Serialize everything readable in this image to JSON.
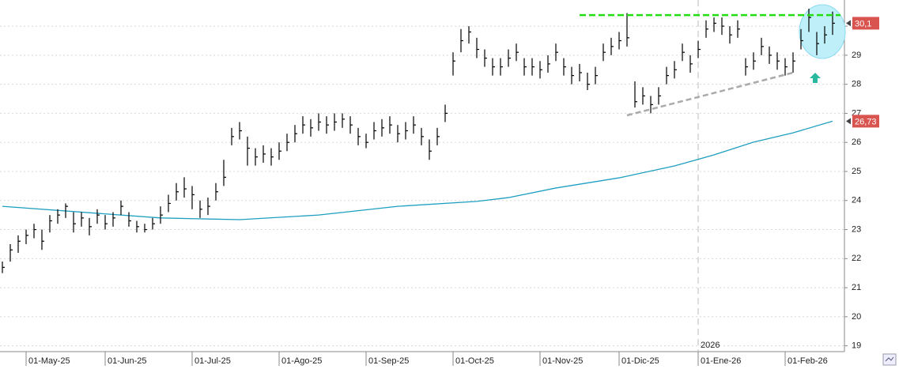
{
  "chart_data": {
    "type": "ohlc",
    "color": "#000000",
    "bars": [
      [
        21.9,
        21.5,
        21.7
      ],
      [
        22.5,
        21.9,
        22.3
      ],
      [
        22.8,
        22.2,
        22.6
      ],
      [
        23.0,
        22.5,
        22.8
      ],
      [
        23.2,
        22.7,
        23.0
      ],
      [
        23.0,
        22.3,
        22.6
      ],
      [
        23.5,
        22.9,
        23.3
      ],
      [
        23.7,
        23.2,
        23.5
      ],
      [
        23.9,
        23.4,
        23.8
      ],
      [
        23.6,
        22.9,
        23.2
      ],
      [
        23.6,
        23.1,
        23.4
      ],
      [
        23.4,
        22.8,
        23.1
      ],
      [
        23.7,
        23.2,
        23.5
      ],
      [
        23.5,
        23.0,
        23.2
      ],
      [
        23.6,
        23.1,
        23.4
      ],
      [
        24.0,
        23.5,
        23.8
      ],
      [
        23.6,
        23.1,
        23.3
      ],
      [
        23.3,
        22.9,
        23.1
      ],
      [
        23.2,
        22.9,
        23.0
      ],
      [
        23.4,
        23.0,
        23.2
      ],
      [
        23.8,
        23.2,
        23.5
      ],
      [
        24.2,
        23.6,
        23.9
      ],
      [
        24.6,
        24.0,
        24.3
      ],
      [
        24.8,
        24.1,
        24.4
      ],
      [
        24.5,
        23.7,
        24.2
      ],
      [
        24.0,
        23.4,
        23.7
      ],
      [
        24.1,
        23.5,
        23.8
      ],
      [
        24.6,
        24.0,
        24.3
      ],
      [
        25.4,
        24.5,
        24.8
      ],
      [
        26.5,
        25.9,
        26.2
      ],
      [
        26.7,
        26.1,
        26.4
      ],
      [
        26.2,
        25.2,
        25.8
      ],
      [
        25.8,
        25.2,
        25.5
      ],
      [
        25.9,
        25.3,
        25.6
      ],
      [
        25.8,
        25.2,
        25.5
      ],
      [
        26.0,
        25.4,
        25.7
      ],
      [
        26.3,
        25.7,
        26.0
      ],
      [
        26.6,
        26.0,
        26.3
      ],
      [
        26.9,
        26.3,
        26.6
      ],
      [
        26.8,
        26.2,
        26.5
      ],
      [
        27.0,
        26.4,
        26.7
      ],
      [
        26.9,
        26.3,
        26.6
      ],
      [
        27.0,
        26.4,
        26.7
      ],
      [
        27.0,
        26.5,
        26.8
      ],
      [
        26.9,
        26.3,
        26.6
      ],
      [
        26.5,
        25.9,
        26.2
      ],
      [
        26.3,
        25.8,
        26.0
      ],
      [
        26.7,
        26.1,
        26.4
      ],
      [
        26.8,
        26.2,
        26.5
      ],
      [
        26.9,
        26.3,
        26.6
      ],
      [
        26.6,
        26.0,
        26.3
      ],
      [
        26.7,
        26.1,
        26.4
      ],
      [
        26.9,
        26.3,
        26.6
      ],
      [
        26.5,
        25.9,
        26.2
      ],
      [
        26.1,
        25.4,
        25.7
      ],
      [
        26.5,
        25.9,
        26.2
      ],
      [
        27.3,
        26.7,
        27.0
      ],
      [
        29.1,
        28.3,
        28.8
      ],
      [
        29.9,
        29.1,
        29.5
      ],
      [
        30.0,
        29.4,
        29.8
      ],
      [
        29.6,
        28.9,
        29.2
      ],
      [
        29.2,
        28.6,
        28.9
      ],
      [
        28.9,
        28.3,
        28.6
      ],
      [
        28.9,
        28.3,
        28.6
      ],
      [
        29.2,
        28.6,
        28.9
      ],
      [
        29.4,
        28.8,
        29.1
      ],
      [
        28.9,
        28.3,
        28.6
      ],
      [
        28.9,
        28.3,
        28.6
      ],
      [
        28.8,
        28.2,
        28.5
      ],
      [
        29.0,
        28.4,
        28.7
      ],
      [
        29.4,
        28.8,
        29.1
      ],
      [
        28.9,
        28.3,
        28.6
      ],
      [
        28.6,
        28.0,
        28.3
      ],
      [
        28.7,
        28.1,
        28.4
      ],
      [
        28.4,
        27.8,
        28.0
      ],
      [
        28.6,
        28.0,
        28.3
      ],
      [
        29.4,
        28.8,
        29.1
      ],
      [
        29.6,
        29.0,
        29.3
      ],
      [
        29.8,
        29.2,
        29.5
      ],
      [
        30.45,
        29.3,
        29.6
      ],
      [
        28.1,
        27.2,
        27.4
      ],
      [
        27.9,
        27.3,
        27.6
      ],
      [
        27.6,
        27.0,
        27.3
      ],
      [
        27.9,
        27.3,
        27.6
      ],
      [
        28.6,
        28.0,
        28.3
      ],
      [
        28.8,
        28.2,
        28.5
      ],
      [
        29.4,
        28.8,
        29.1
      ],
      [
        29.0,
        28.4,
        28.7
      ],
      [
        29.5,
        28.9,
        29.2
      ],
      [
        30.2,
        29.6,
        29.9
      ],
      [
        30.3,
        29.8,
        30.1
      ],
      [
        30.3,
        29.7,
        30.0
      ],
      [
        30.0,
        29.4,
        29.7
      ],
      [
        30.2,
        29.6,
        29.9
      ],
      [
        28.9,
        28.3,
        28.6
      ],
      [
        29.1,
        28.5,
        28.8
      ],
      [
        29.6,
        29.0,
        29.3
      ],
      [
        29.3,
        28.7,
        29.0
      ],
      [
        29.1,
        28.5,
        28.8
      ],
      [
        28.9,
        28.3,
        28.6
      ],
      [
        29.1,
        28.4,
        28.8
      ],
      [
        29.9,
        29.2,
        29.5
      ],
      [
        30.6,
        29.8,
        30.3
      ],
      [
        29.8,
        29.0,
        29.4
      ],
      [
        30.0,
        29.4,
        29.7
      ],
      [
        30.5,
        29.7,
        30.1
      ]
    ],
    "xlim": [
      -0.3,
      106.5
    ],
    "xticks": [
      {
        "value": 3,
        "label": "01-May-25"
      },
      {
        "value": 13,
        "label": "01-Jun-25"
      },
      {
        "value": 24,
        "label": "01-Jul-25"
      },
      {
        "value": 35,
        "label": "01-Ago-25"
      },
      {
        "value": 46,
        "label": "01-Sep-25"
      },
      {
        "value": 57,
        "label": "01-Oct-25"
      },
      {
        "value": 68,
        "label": "01-Nov-25"
      },
      {
        "value": 78,
        "label": "01-Dic-25"
      },
      {
        "value": 88,
        "label": "01-Ene-26"
      },
      {
        "value": 99,
        "label": "01-Feb-26"
      }
    ],
    "ylim": [
      18.8,
      30.9
    ],
    "yticks": [
      19,
      20,
      21,
      22,
      23,
      24,
      25,
      26,
      27,
      28,
      29,
      30
    ],
    "grid": true,
    "moving_average": {
      "color": "#1e9fc0",
      "x": [
        0,
        20,
        30,
        40,
        50,
        60,
        64,
        70,
        78,
        85,
        90,
        95,
        100,
        105
      ],
      "values": [
        23.8,
        23.4,
        23.34,
        23.5,
        23.8,
        23.97,
        24.1,
        24.43,
        24.78,
        25.19,
        25.57,
        26.01,
        26.33,
        26.73
      ]
    },
    "resistance": {
      "color": "#22dd11",
      "x": [
        73,
        106
      ],
      "value": 30.38
    },
    "support": {
      "color": "#aaaaaa",
      "x": [
        79,
        100
      ],
      "values": [
        26.93,
        28.4
      ]
    },
    "price_labels": [
      {
        "value": 30.1,
        "label": "30,1"
      },
      {
        "value": 26.73,
        "label": "26,73"
      }
    ],
    "year_marker": {
      "value": 88,
      "label": "2026"
    }
  }
}
